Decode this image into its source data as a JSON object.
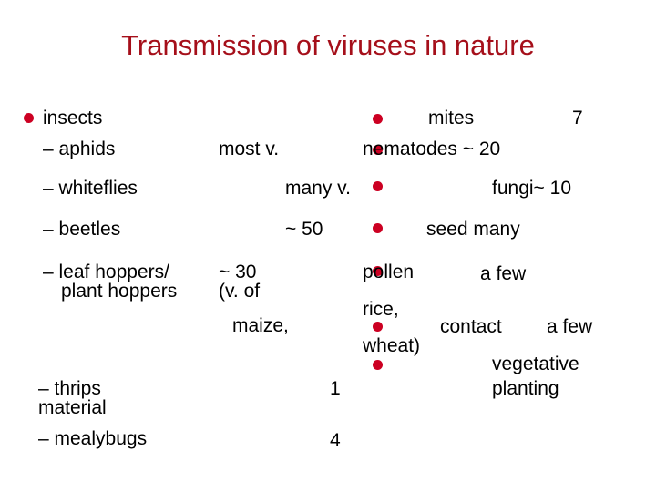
{
  "title": "Transmission of viruses in nature",
  "colors": {
    "title": "#a50f1a",
    "bullet": "#cc0022"
  },
  "left": {
    "insects": "insects",
    "aphids": "– aphids",
    "aphids_count": "most v.",
    "whiteflies": "– whiteflies",
    "whiteflies_count": "many v.",
    "beetles": "– beetles",
    "beetles_count": "~ 50",
    "leafhoppers_line1": "– leaf hoppers/",
    "leafhoppers_line2": "plant hoppers",
    "leafhoppers_count": "~ 30",
    "leafhoppers_note1": "(v. of",
    "leafhoppers_note2": "maize,",
    "thrips": "– thrips",
    "thrips_count": "1",
    "material": "material",
    "mealybugs": "– mealybugs",
    "mealybugs_count": "4"
  },
  "right": {
    "mites": "mites",
    "mites_count": "7",
    "nematodes": "nematodes ~ 20",
    "fungi": "fungi~ 10",
    "seed": "seed many",
    "pollen": "pollen",
    "pollen_count": "a few",
    "rice": "rice,",
    "wheat": "wheat)",
    "contact": "contact",
    "contact_count": "a few",
    "vegetative": "vegetative",
    "planting": "planting"
  }
}
